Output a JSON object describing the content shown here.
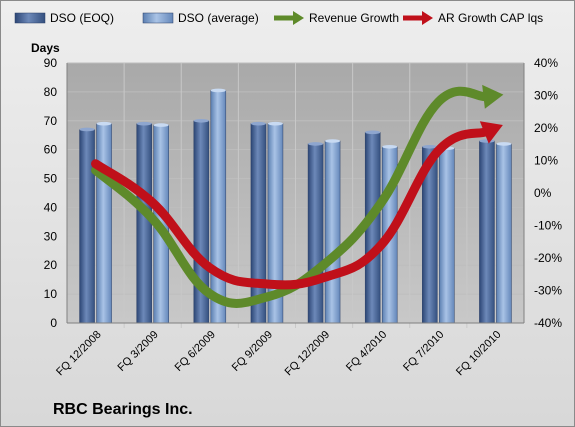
{
  "company_label": "RBC Bearings Inc.",
  "chart_data": {
    "type": "bar",
    "categories": [
      "FQ 12/2008",
      "FQ 3/2009",
      "FQ 6/2009",
      "FQ 9/2009",
      "FQ 12/2009",
      "FQ 4/2010",
      "FQ 7/2010",
      "FQ 10/2010"
    ],
    "ylabel": "Days",
    "ylim": [
      0,
      90
    ],
    "y_ticks": [
      "0",
      "10",
      "20",
      "30",
      "40",
      "50",
      "60",
      "70",
      "80",
      "90"
    ],
    "y2lim": [
      -40,
      40
    ],
    "y2_ticks": [
      "-40%",
      "-30%",
      "-20%",
      "-10%",
      "0%",
      "10%",
      "20%",
      "30%",
      "40%"
    ],
    "legend_position": "top",
    "grid": true,
    "series": [
      {
        "name": "DSO (EOQ)",
        "kind": "bar",
        "axis": "left",
        "color": "#4a6594",
        "values": [
          67,
          69,
          70,
          69,
          62,
          66,
          61,
          63
        ]
      },
      {
        "name": "DSO (average)",
        "kind": "bar",
        "axis": "left",
        "color": "#7fa0cc",
        "values": [
          69,
          68.5,
          80.5,
          69,
          63,
          61,
          60.5,
          62
        ]
      },
      {
        "name": "Revenue Growth",
        "kind": "line",
        "axis": "right",
        "color": "#5e8a2a",
        "values": [
          7,
          -8,
          -31,
          -32,
          -22,
          -3,
          28,
          30
        ]
      },
      {
        "name": "AR Growth CAP lqs",
        "kind": "line",
        "axis": "right",
        "color": "#c0101a",
        "values": [
          9,
          -3,
          -23,
          -28,
          -26,
          -16,
          13,
          20
        ]
      }
    ]
  }
}
